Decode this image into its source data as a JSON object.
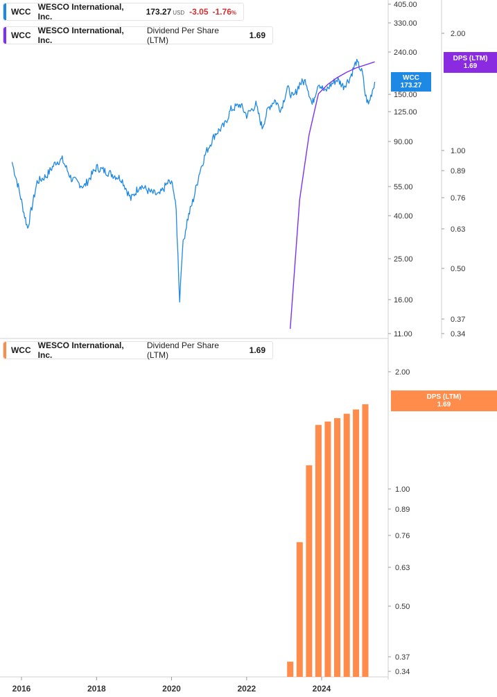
{
  "legend_price": {
    "symbol": "WCC",
    "name": "WESCO International, Inc.",
    "price": "173.27",
    "currency": "USD",
    "change": "-3.05",
    "change_pct": "-1.76",
    "pct_sign": "%"
  },
  "legend_dps_top": {
    "symbol": "WCC",
    "name": "WESCO International, Inc.",
    "metric": "Dividend Per Share (LTM)",
    "value": "1.69"
  },
  "legend_dps_bottom": {
    "symbol": "WCC",
    "name": "WESCO International, Inc.",
    "metric": "Dividend Per Share (LTM)",
    "value": "1.69"
  },
  "tags": {
    "price": {
      "line1": "WCC",
      "line2": "173.27"
    },
    "dps_top": {
      "line1": "DPS (LTM)",
      "line2": "1.69"
    },
    "dps_bottom": {
      "line1": "DPS (LTM)",
      "line2": "1.69"
    }
  },
  "colors": {
    "price": "#1e88e5",
    "dps_line": "#7b2ff7",
    "dps_bar": "#ff8c4a",
    "grid": "#d9d9d9",
    "negative": "#d32f2f"
  },
  "chart_data": [
    {
      "type": "line",
      "scale": "log",
      "series": [
        {
          "name": "WCC",
          "points": [
            [
              "2015-10-01",
              72
            ],
            [
              "2015-12-01",
              55
            ],
            [
              "2016-02-01",
              40
            ],
            [
              "2016-03-01",
              35
            ],
            [
              "2016-06-01",
              58
            ],
            [
              "2016-09-01",
              62
            ],
            [
              "2016-12-01",
              72
            ],
            [
              "2017-02-01",
              74
            ],
            [
              "2017-05-01",
              60
            ],
            [
              "2017-09-01",
              55
            ],
            [
              "2018-01-01",
              68
            ],
            [
              "2018-05-01",
              64
            ],
            [
              "2018-09-01",
              60
            ],
            [
              "2018-12-01",
              48
            ],
            [
              "2019-03-01",
              56
            ],
            [
              "2019-06-01",
              52
            ],
            [
              "2019-09-01",
              50
            ],
            [
              "2019-12-01",
              58
            ],
            [
              "2020-01-15",
              56
            ],
            [
              "2020-02-15",
              42
            ],
            [
              "2020-03-20",
              16
            ],
            [
              "2020-04-15",
              28
            ],
            [
              "2020-06-01",
              38
            ],
            [
              "2020-08-01",
              48
            ],
            [
              "2020-10-01",
              65
            ],
            [
              "2020-12-01",
              80
            ],
            [
              "2021-03-01",
              98
            ],
            [
              "2021-06-01",
              108
            ],
            [
              "2021-08-01",
              128
            ],
            [
              "2021-11-01",
              135
            ],
            [
              "2022-01-01",
              120
            ],
            [
              "2022-04-01",
              135
            ],
            [
              "2022-06-01",
              105
            ],
            [
              "2022-08-01",
              130
            ],
            [
              "2022-10-01",
              142
            ],
            [
              "2022-12-01",
              128
            ],
            [
              "2023-02-01",
              162
            ],
            [
              "2023-04-01",
              145
            ],
            [
              "2023-06-01",
              170
            ],
            [
              "2023-08-01",
              175
            ],
            [
              "2023-10-01",
              135
            ],
            [
              "2023-12-01",
              172
            ],
            [
              "2024-02-01",
              155
            ],
            [
              "2024-04-01",
              168
            ],
            [
              "2024-06-01",
              178
            ],
            [
              "2024-08-01",
              165
            ],
            [
              "2024-10-01",
              180
            ],
            [
              "2024-12-01",
              215
            ],
            [
              "2025-01-01",
              205
            ],
            [
              "2025-02-01",
              190
            ],
            [
              "2025-03-01",
              150
            ],
            [
              "2025-04-01",
              135
            ],
            [
              "2025-06-01",
              173.27
            ]
          ]
        },
        {
          "name": "Dividend Per Share (LTM)",
          "axis": "right",
          "points": [
            [
              "2023-03-01",
              0.35
            ],
            [
              "2023-06-01",
              0.75
            ],
            [
              "2023-09-01",
              1.1
            ],
            [
              "2023-12-01",
              1.4
            ],
            [
              "2024-03-01",
              1.48
            ],
            [
              "2024-06-01",
              1.54
            ],
            [
              "2024-09-01",
              1.59
            ],
            [
              "2024-12-01",
              1.63
            ],
            [
              "2025-06-01",
              1.69
            ]
          ]
        }
      ],
      "y_ticks": [
        "405.00",
        "330.00",
        "240.00",
        "150.00",
        "125.00",
        "90.00",
        "55.00",
        "40.00",
        "25.00",
        "16.00",
        "11.00"
      ],
      "y2_ticks": [
        "2.00",
        "1.00",
        "0.89",
        "0.76",
        "0.63",
        "0.50",
        "0.37",
        "0.34"
      ]
    },
    {
      "type": "bar",
      "scale": "log",
      "series": [
        {
          "name": "Dividend Per Share (LTM)",
          "points": [
            [
              "2023-03-01",
              0.36
            ],
            [
              "2023-06-01",
              0.73
            ],
            [
              "2023-09-01",
              1.15
            ],
            [
              "2023-12-01",
              1.46
            ],
            [
              "2024-03-01",
              1.49
            ],
            [
              "2024-06-01",
              1.52
            ],
            [
              "2024-09-01",
              1.56
            ],
            [
              "2024-12-01",
              1.6
            ],
            [
              "2025-03-01",
              1.65
            ]
          ]
        }
      ],
      "y_ticks": [
        "2.00",
        "1.00",
        "0.89",
        "0.76",
        "0.63",
        "0.50",
        "0.37",
        "0.34"
      ],
      "x_ticks": [
        "2016",
        "2018",
        "2020",
        "2022",
        "2024"
      ]
    }
  ]
}
